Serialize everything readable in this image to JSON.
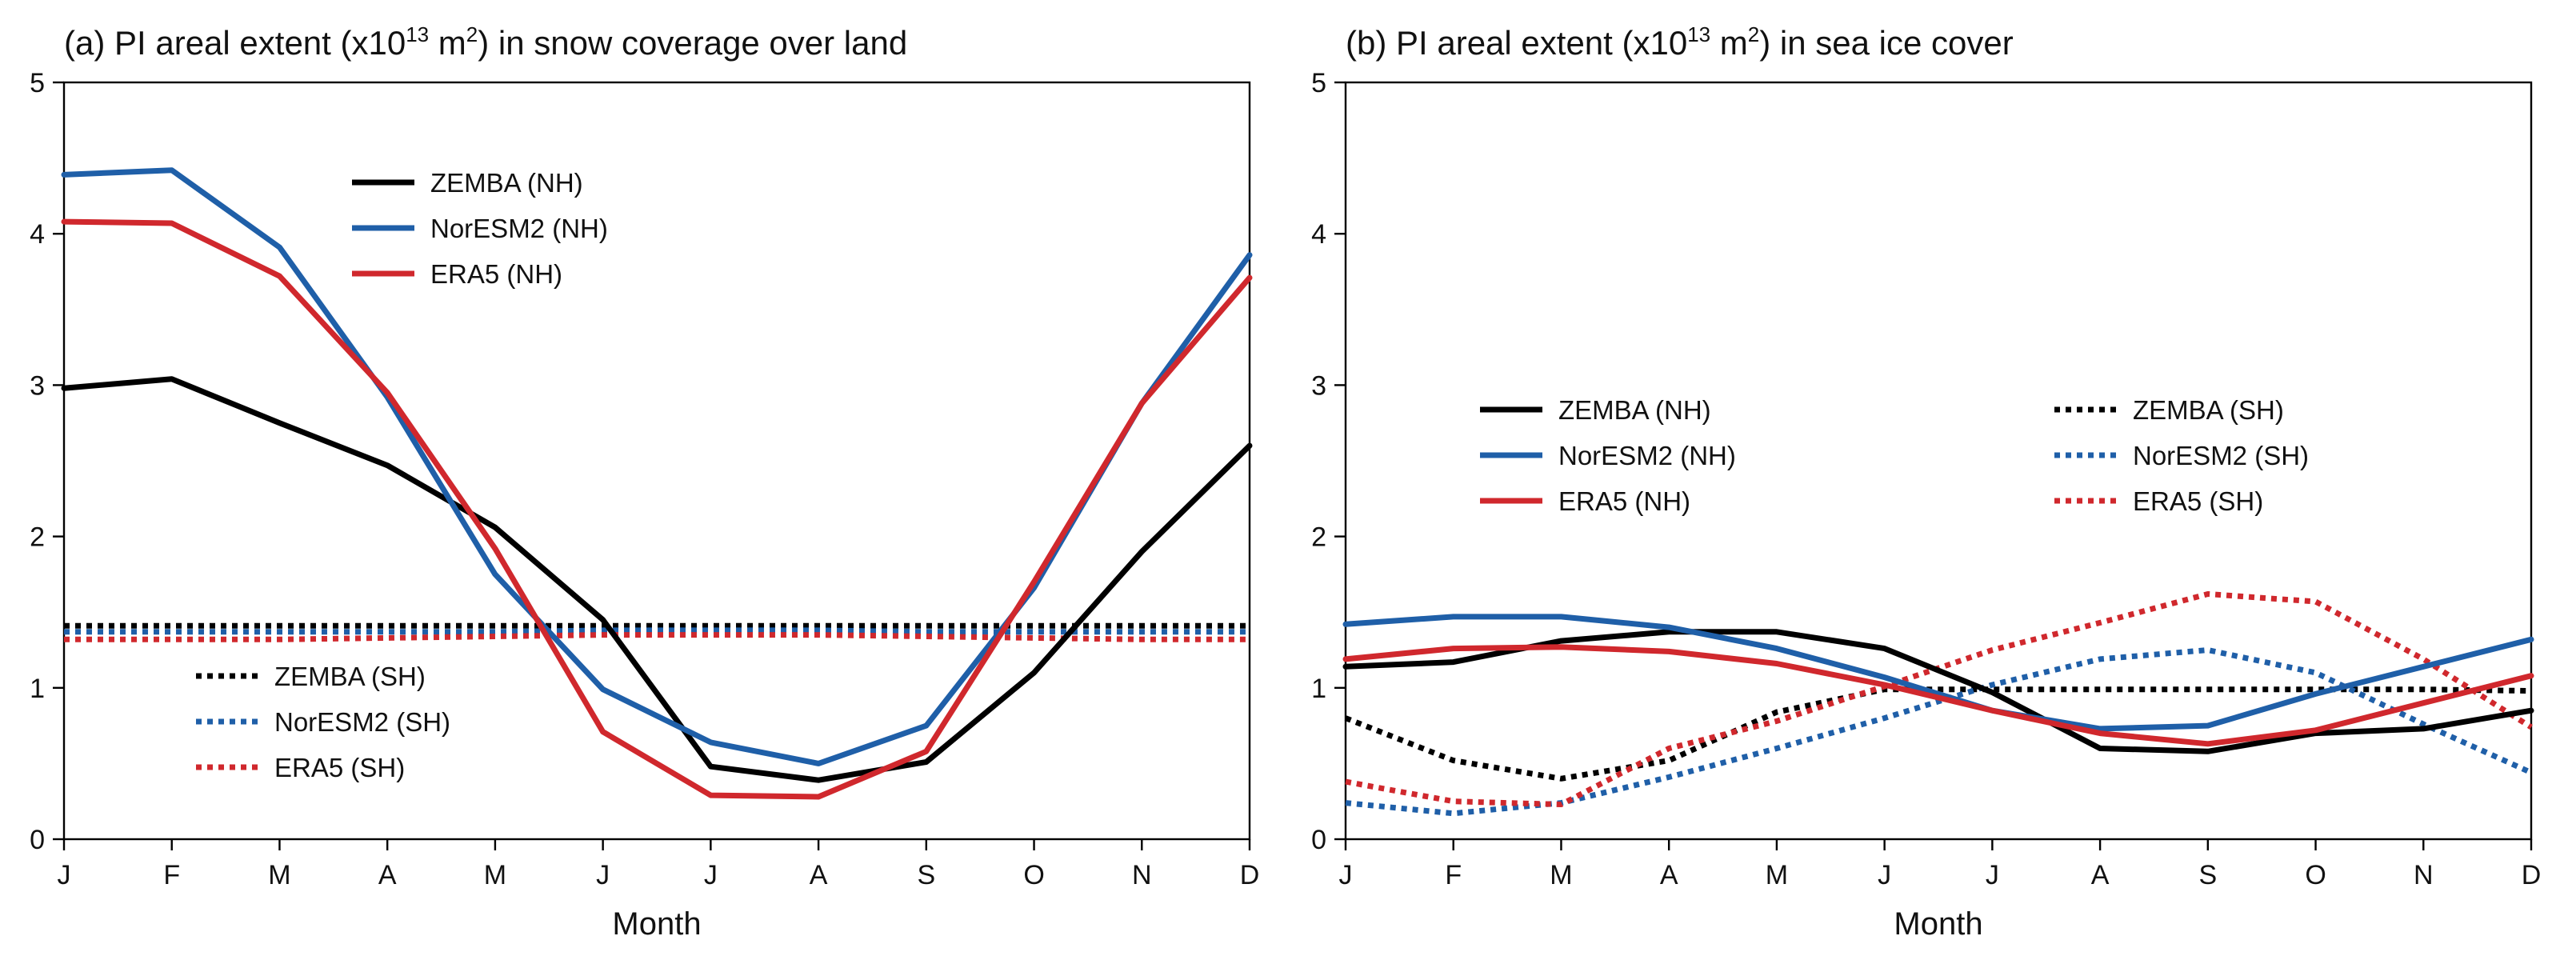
{
  "chart_data": [
    {
      "type": "line",
      "id": "a",
      "title_prefix": "(a) PI areal extent (x10",
      "title_exp1": "13",
      "title_mid": " m",
      "title_exp2": "2",
      "title_suffix": ") in snow coverage over land",
      "xlabel": "Month",
      "ylabel": "",
      "categories": [
        "J",
        "F",
        "M",
        "A",
        "M",
        "J",
        "J",
        "A",
        "S",
        "O",
        "N",
        "D"
      ],
      "ylim": [
        0,
        5
      ],
      "yticks": [
        0,
        1,
        2,
        3,
        4,
        5
      ],
      "grid": false,
      "legend": [
        {
          "group": "NH",
          "position": "upper-center",
          "entries": [
            0,
            1,
            2
          ]
        },
        {
          "group": "SH",
          "position": "lower-left",
          "entries": [
            3,
            4,
            5
          ]
        }
      ],
      "series": [
        {
          "name": "ZEMBA (NH)",
          "color": "#000000",
          "style": "solid",
          "values": [
            2.98,
            3.04,
            2.75,
            2.47,
            2.06,
            1.45,
            0.48,
            0.39,
            0.51,
            1.1,
            1.9,
            2.6
          ]
        },
        {
          "name": "NorESM2 (NH)",
          "color": "#1f5fa8",
          "style": "solid",
          "values": [
            4.39,
            4.42,
            3.91,
            2.92,
            1.75,
            0.99,
            0.64,
            0.5,
            0.75,
            1.66,
            2.88,
            3.86
          ]
        },
        {
          "name": "ERA5 (NH)",
          "color": "#d0282d",
          "style": "solid",
          "values": [
            4.08,
            4.07,
            3.72,
            2.95,
            1.92,
            0.71,
            0.29,
            0.28,
            0.58,
            1.7,
            2.88,
            3.71
          ]
        },
        {
          "name": "ZEMBA (SH)",
          "color": "#000000",
          "style": "dotted",
          "values": [
            1.41,
            1.41,
            1.41,
            1.41,
            1.41,
            1.41,
            1.41,
            1.41,
            1.41,
            1.41,
            1.41,
            1.41
          ]
        },
        {
          "name": "NorESM2 (SH)",
          "color": "#1f5fa8",
          "style": "dotted",
          "values": [
            1.37,
            1.37,
            1.37,
            1.37,
            1.37,
            1.38,
            1.38,
            1.38,
            1.37,
            1.37,
            1.37,
            1.37
          ]
        },
        {
          "name": "ERA5 (SH)",
          "color": "#d0282d",
          "style": "dotted",
          "values": [
            1.32,
            1.32,
            1.32,
            1.33,
            1.34,
            1.35,
            1.35,
            1.35,
            1.34,
            1.33,
            1.32,
            1.32
          ]
        }
      ]
    },
    {
      "type": "line",
      "id": "b",
      "title_prefix": "(b) PI areal extent (x10",
      "title_exp1": "13",
      "title_mid": " m",
      "title_exp2": "2",
      "title_suffix": ") in sea ice cover",
      "xlabel": "Month",
      "ylabel": "",
      "categories": [
        "J",
        "F",
        "M",
        "A",
        "M",
        "J",
        "J",
        "A",
        "S",
        "O",
        "N",
        "D"
      ],
      "ylim": [
        0,
        5
      ],
      "yticks": [
        0,
        1,
        2,
        3,
        4,
        5
      ],
      "grid": false,
      "legend": [
        {
          "group": "NH",
          "position": "center-left",
          "entries": [
            0,
            1,
            2
          ]
        },
        {
          "group": "SH",
          "position": "center-right",
          "entries": [
            3,
            4,
            5
          ]
        }
      ],
      "series": [
        {
          "name": "ZEMBA (NH)",
          "color": "#000000",
          "style": "solid",
          "values": [
            1.14,
            1.17,
            1.31,
            1.37,
            1.37,
            1.26,
            0.97,
            0.6,
            0.58,
            0.7,
            0.73,
            0.85
          ]
        },
        {
          "name": "NorESM2 (NH)",
          "color": "#1f5fa8",
          "style": "solid",
          "values": [
            1.42,
            1.47,
            1.47,
            1.4,
            1.26,
            1.07,
            0.85,
            0.73,
            0.75,
            0.96,
            1.14,
            1.32
          ]
        },
        {
          "name": "ERA5 (NH)",
          "color": "#d0282d",
          "style": "solid",
          "values": [
            1.19,
            1.26,
            1.27,
            1.24,
            1.16,
            1.02,
            0.85,
            0.7,
            0.63,
            0.72,
            0.9,
            1.08
          ]
        },
        {
          "name": "ZEMBA (SH)",
          "color": "#000000",
          "style": "dotted",
          "values": [
            0.8,
            0.52,
            0.4,
            0.52,
            0.84,
            0.99,
            0.99,
            0.99,
            0.99,
            0.99,
            0.99,
            0.98
          ]
        },
        {
          "name": "NorESM2 (SH)",
          "color": "#1f5fa8",
          "style": "dotted",
          "values": [
            0.24,
            0.17,
            0.24,
            0.41,
            0.6,
            0.8,
            1.02,
            1.19,
            1.25,
            1.1,
            0.76,
            0.44
          ]
        },
        {
          "name": "ERA5 (SH)",
          "color": "#d0282d",
          "style": "dotted",
          "values": [
            0.38,
            0.25,
            0.23,
            0.6,
            0.78,
            1.01,
            1.25,
            1.43,
            1.62,
            1.57,
            1.19,
            0.74
          ]
        }
      ]
    }
  ]
}
